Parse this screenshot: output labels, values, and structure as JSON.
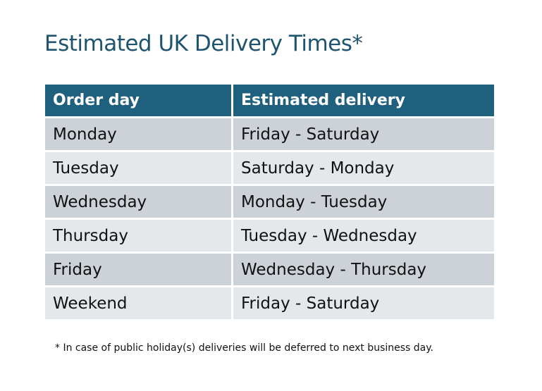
{
  "title": "Estimated UK Delivery Times*",
  "table": {
    "headers": [
      "Order day",
      "Estimated delivery"
    ],
    "rows": [
      [
        "Monday",
        "Friday - Saturday"
      ],
      [
        "Tuesday",
        "Saturday - Monday"
      ],
      [
        "Wednesday",
        "Monday - Tuesday"
      ],
      [
        "Thursday",
        "Tuesday - Wednesday"
      ],
      [
        "Friday",
        "Wednesday - Thursday"
      ],
      [
        "Weekend",
        "Friday - Saturday"
      ]
    ]
  },
  "footnote": "* In case of public holiday(s) deliveries will be deferred to next business day.",
  "colors": {
    "header": "#20607f",
    "title": "#1f5470",
    "row_dark": "#cdd1d8",
    "row_light": "#e5e8eb"
  }
}
